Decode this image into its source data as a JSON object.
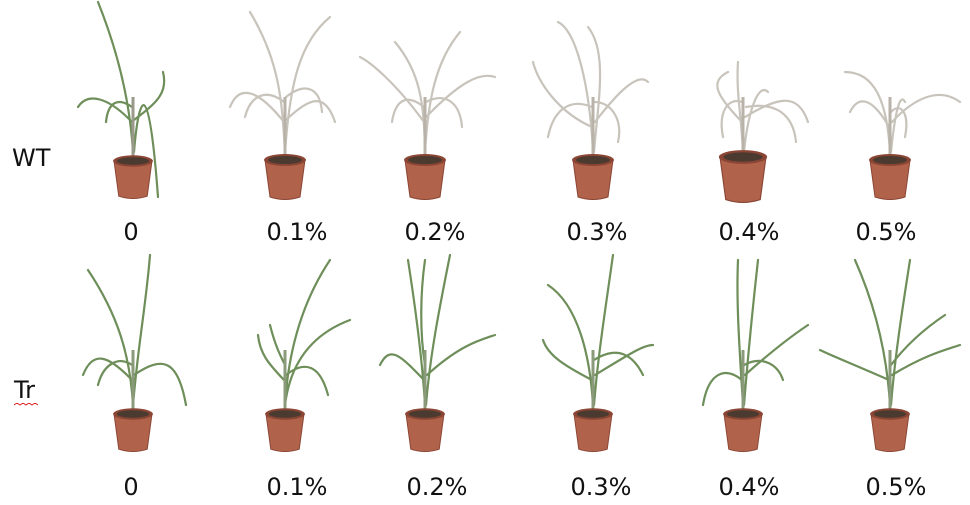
{
  "rows": [
    {
      "label": "WT",
      "condition": "wilted",
      "concentrations": [
        "0",
        "0.1%",
        "0.2%",
        "0.3%",
        "0.4%",
        "0.5%"
      ]
    },
    {
      "label": "Tr",
      "condition": "healthy",
      "concentrations": [
        "0",
        "0.1%",
        "0.2%",
        "0.3%",
        "0.4%",
        "0.5%"
      ]
    }
  ],
  "colors": {
    "pot": "#b0624a",
    "pot_shadow": "#8a4534",
    "soil": "#4a3a30",
    "leaf_green": "#6e8e5a",
    "leaf_dry": "#c8c4bc"
  }
}
